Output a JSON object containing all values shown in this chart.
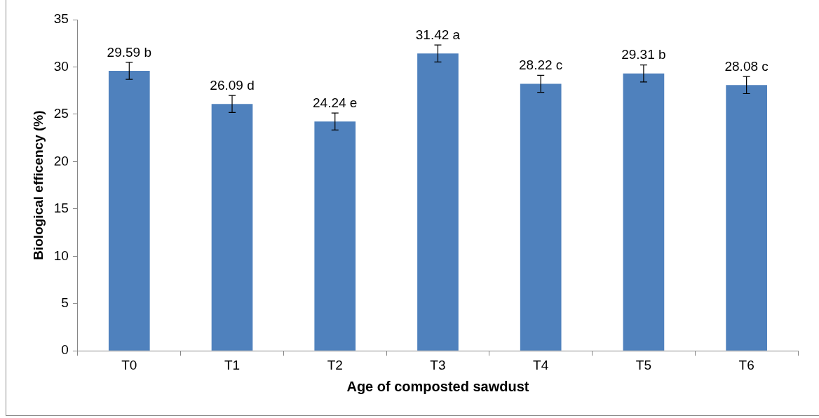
{
  "chart_data": {
    "type": "bar",
    "xlabel": "Age of composted sawdust",
    "ylabel": "Biological efficency (%)",
    "categories": [
      "T0",
      "T1",
      "T2",
      "T3",
      "T4",
      "T5",
      "T6"
    ],
    "values": [
      29.59,
      26.09,
      24.24,
      31.42,
      28.22,
      29.31,
      28.08
    ],
    "value_labels": [
      "29.59 b",
      "26.09 d",
      "24.24 e",
      "31.42 a",
      "28.22 c",
      "29.31 b",
      "28.08 c"
    ],
    "errors": [
      0.9,
      0.9,
      0.9,
      0.9,
      0.9,
      0.9,
      0.9
    ],
    "color": "#4f81bd",
    "ylim": [
      0,
      35
    ],
    "yticks": [
      0,
      5,
      10,
      15,
      20,
      25,
      30,
      35
    ]
  }
}
